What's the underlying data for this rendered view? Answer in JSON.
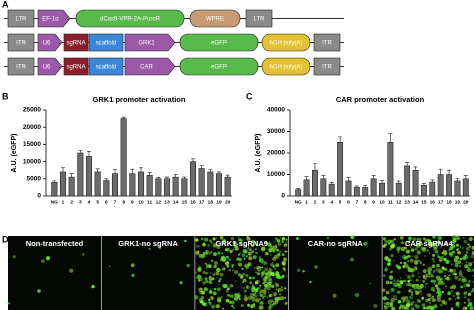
{
  "panel_a": {
    "label": "A",
    "rows": [
      [
        "LTR",
        "EF-1α",
        "dCas9-VPR-2A-PuroR",
        "WPRE",
        "LTR"
      ],
      [
        "ITR",
        "U6",
        "sgRNA",
        "scaffold",
        "GRK1",
        "eGFP",
        "hGH poly(A)",
        "ITR"
      ],
      [
        "ITR",
        "U6",
        "sgRNA",
        "scaffold",
        "CAR",
        "eGFP",
        "hGH poly(A)",
        "ITR"
      ]
    ]
  },
  "chart_data": [
    {
      "type": "bar",
      "panel_label": "B",
      "title": "GRK1 promoter activation",
      "y_label": "A.U. (eGFP)",
      "categories": [
        "NG",
        "1",
        "2",
        "3",
        "4",
        "5",
        "6",
        "7",
        "8",
        "9",
        "10",
        "11",
        "12",
        "13",
        "14",
        "15",
        "16",
        "17",
        "18",
        "19",
        "20"
      ],
      "values": [
        4000,
        7000,
        5500,
        12500,
        11500,
        7000,
        4500,
        6500,
        22500,
        6500,
        7000,
        6000,
        5000,
        5000,
        5500,
        5000,
        10000,
        8000,
        7000,
        6500,
        5500
      ],
      "errors": [
        400,
        1200,
        1000,
        800,
        1500,
        900,
        500,
        1200,
        400,
        1300,
        1200,
        800,
        400,
        500,
        700,
        500,
        800,
        900,
        700,
        500,
        600
      ],
      "color": "#6b6b6b",
      "ylim": [
        0,
        25000
      ],
      "yticks": [
        0,
        5000,
        10000,
        15000,
        20000,
        25000
      ]
    },
    {
      "type": "bar",
      "panel_label": "C",
      "title": "CAR promoter activation",
      "y_label": "A.U. (eGFP)",
      "categories": [
        "NG",
        "1",
        "2",
        "3",
        "4",
        "5",
        "6",
        "7",
        "8",
        "9",
        "10",
        "11",
        "12",
        "13",
        "14",
        "15",
        "16",
        "17",
        "18",
        "19",
        "20"
      ],
      "values": [
        3000,
        7500,
        12000,
        8000,
        5500,
        25000,
        7000,
        4000,
        4000,
        8000,
        6000,
        25000,
        6000,
        14000,
        12000,
        5000,
        6500,
        10000,
        10000,
        7000,
        8000
      ],
      "errors": [
        500,
        1500,
        3000,
        1500,
        800,
        2500,
        1500,
        600,
        800,
        1500,
        1200,
        4000,
        1000,
        1500,
        1500,
        800,
        1000,
        2500,
        2000,
        1200,
        1500
      ],
      "color": "#6b6b6b",
      "ylim": [
        0,
        40000
      ],
      "yticks": [
        0,
        10000,
        20000,
        30000,
        40000
      ]
    }
  ],
  "panel_d": {
    "label": "D",
    "images": [
      "Non-transfected",
      "GRK1-no sgRNA",
      "GRK1-sgRNA9",
      "CAR-no sgRNA",
      "CAR-sgRNA4"
    ]
  }
}
